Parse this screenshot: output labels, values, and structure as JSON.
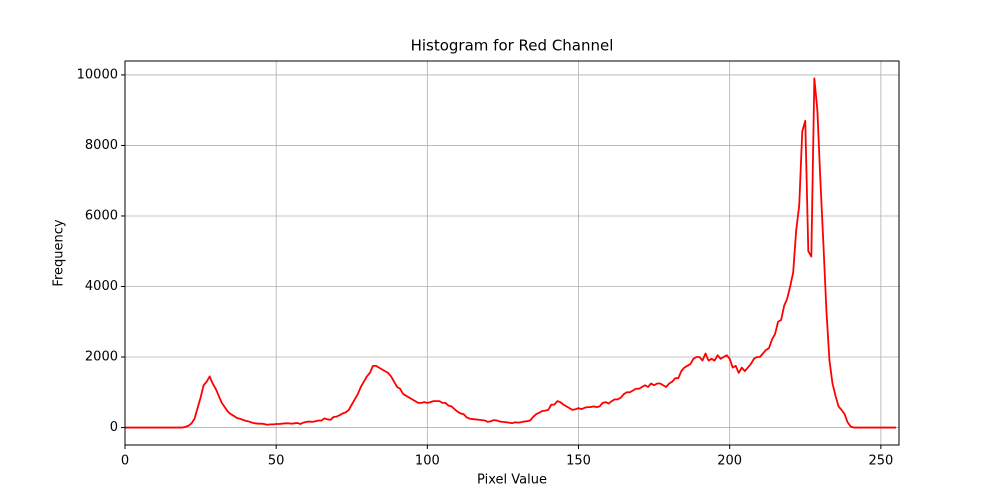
{
  "chart_data": {
    "type": "line",
    "title": "Histogram for Red Channel",
    "x_label": "Pixel Value",
    "y_label": "Frequency",
    "color": "#ff0000",
    "grid": true,
    "xlim": [
      0,
      256
    ],
    "ylim": [
      -495,
      10395
    ],
    "xticks": [
      0,
      50,
      100,
      150,
      200,
      250
    ],
    "yticks": [
      0,
      2000,
      4000,
      6000,
      8000,
      10000
    ],
    "x": [
      0,
      1,
      2,
      3,
      4,
      5,
      6,
      7,
      8,
      9,
      10,
      11,
      12,
      13,
      14,
      15,
      16,
      17,
      18,
      19,
      20,
      21,
      22,
      23,
      24,
      25,
      26,
      27,
      28,
      29,
      30,
      31,
      32,
      33,
      34,
      35,
      36,
      37,
      38,
      39,
      40,
      41,
      42,
      43,
      44,
      45,
      46,
      47,
      48,
      49,
      50,
      51,
      52,
      53,
      54,
      55,
      56,
      57,
      58,
      59,
      60,
      61,
      62,
      63,
      64,
      65,
      66,
      67,
      68,
      69,
      70,
      71,
      72,
      73,
      74,
      75,
      76,
      77,
      78,
      79,
      80,
      81,
      82,
      83,
      84,
      85,
      86,
      87,
      88,
      89,
      90,
      91,
      92,
      93,
      94,
      95,
      96,
      97,
      98,
      99,
      100,
      101,
      102,
      103,
      104,
      105,
      106,
      107,
      108,
      109,
      110,
      111,
      112,
      113,
      114,
      115,
      116,
      117,
      118,
      119,
      120,
      121,
      122,
      123,
      124,
      125,
      126,
      127,
      128,
      129,
      130,
      131,
      132,
      133,
      134,
      135,
      136,
      137,
      138,
      139,
      140,
      141,
      142,
      143,
      144,
      145,
      146,
      147,
      148,
      149,
      150,
      151,
      152,
      153,
      154,
      155,
      156,
      157,
      158,
      159,
      160,
      161,
      162,
      163,
      164,
      165,
      166,
      167,
      168,
      169,
      170,
      171,
      172,
      173,
      174,
      175,
      176,
      177,
      178,
      179,
      180,
      181,
      182,
      183,
      184,
      185,
      186,
      187,
      188,
      189,
      190,
      191,
      192,
      193,
      194,
      195,
      196,
      197,
      198,
      199,
      200,
      201,
      202,
      203,
      204,
      205,
      206,
      207,
      208,
      209,
      210,
      211,
      212,
      213,
      214,
      215,
      216,
      217,
      218,
      219,
      220,
      221,
      222,
      223,
      224,
      225,
      226,
      227,
      228,
      229,
      230,
      231,
      232,
      233,
      234,
      235,
      236,
      237,
      238,
      239,
      240,
      241,
      242,
      243,
      244,
      245,
      246,
      247,
      248,
      249,
      250,
      251,
      252,
      253,
      254,
      255
    ],
    "values": [
      0,
      0,
      0,
      0,
      0,
      0,
      0,
      0,
      0,
      0,
      0,
      0,
      0,
      0,
      0,
      0,
      0,
      0,
      0,
      0,
      20,
      50,
      120,
      250,
      550,
      850,
      1200,
      1300,
      1450,
      1250,
      1100,
      900,
      700,
      580,
      450,
      380,
      330,
      270,
      250,
      220,
      190,
      170,
      140,
      120,
      110,
      110,
      100,
      80,
      90,
      90,
      100,
      100,
      110,
      120,
      120,
      110,
      120,
      130,
      100,
      140,
      160,
      170,
      160,
      180,
      200,
      200,
      260,
      230,
      220,
      300,
      310,
      350,
      400,
      430,
      500,
      650,
      800,
      950,
      1150,
      1300,
      1450,
      1550,
      1750,
      1750,
      1700,
      1650,
      1600,
      1550,
      1450,
      1300,
      1150,
      1100,
      950,
      900,
      850,
      800,
      750,
      700,
      700,
      720,
      700,
      720,
      750,
      750,
      750,
      700,
      700,
      620,
      600,
      520,
      450,
      400,
      380,
      290,
      250,
      240,
      230,
      220,
      210,
      200,
      160,
      180,
      210,
      200,
      170,
      160,
      150,
      140,
      120,
      150,
      140,
      150,
      170,
      180,
      200,
      300,
      380,
      420,
      470,
      480,
      500,
      650,
      650,
      750,
      720,
      650,
      600,
      550,
      500,
      520,
      550,
      520,
      560,
      580,
      580,
      600,
      580,
      600,
      700,
      720,
      680,
      750,
      800,
      800,
      850,
      950,
      1000,
      1000,
      1050,
      1100,
      1100,
      1150,
      1200,
      1150,
      1250,
      1200,
      1250,
      1250,
      1200,
      1150,
      1250,
      1300,
      1400,
      1400,
      1600,
      1700,
      1750,
      1800,
      1950,
      2000,
      2000,
      1900,
      2100,
      1900,
      1950,
      1900,
      2050,
      1950,
      2000,
      2050,
      1950,
      1700,
      1750,
      1550,
      1700,
      1600,
      1700,
      1800,
      1950,
      2000,
      2000,
      2100,
      2200,
      2250,
      2500,
      2650,
      3000,
      3050,
      3450,
      3650,
      4000,
      4400,
      5600,
      6300,
      8400,
      8700,
      5000,
      4850,
      9900,
      9000,
      7000,
      5200,
      3300,
      1900,
      1250,
      900,
      600,
      500,
      380,
      150,
      30,
      0,
      0,
      0,
      0,
      0,
      0,
      0,
      0,
      0,
      0,
      0,
      0,
      0,
      0,
      0
    ]
  }
}
